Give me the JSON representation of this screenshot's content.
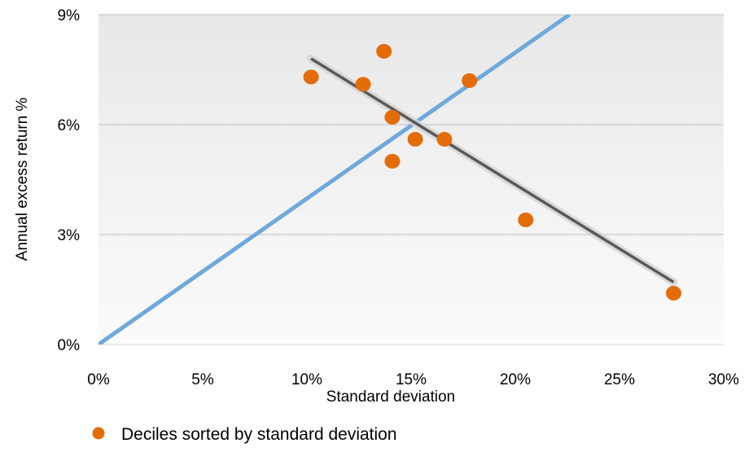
{
  "chart_data": {
    "type": "scatter",
    "xlabel": "Standard deviation",
    "ylabel": "Annual excess return %",
    "xlim": [
      0,
      30
    ],
    "ylim": [
      0,
      9
    ],
    "x_ticks": [
      "0%",
      "5%",
      "10%",
      "15%",
      "20%",
      "25%",
      "30%"
    ],
    "y_ticks": [
      "0%",
      "3%",
      "6%",
      "9%"
    ],
    "grid": "horizontal",
    "legend_position": "bottom",
    "series": [
      {
        "name": "Deciles sorted by standard deviation",
        "color": "#E36C09",
        "points": [
          {
            "x": 10.2,
            "y": 7.3
          },
          {
            "x": 12.7,
            "y": 7.1
          },
          {
            "x": 13.7,
            "y": 8.0
          },
          {
            "x": 14.1,
            "y": 6.2
          },
          {
            "x": 14.1,
            "y": 5.0
          },
          {
            "x": 15.2,
            "y": 5.6
          },
          {
            "x": 16.6,
            "y": 5.6
          },
          {
            "x": 17.8,
            "y": 7.2
          },
          {
            "x": 20.5,
            "y": 3.4
          },
          {
            "x": 27.6,
            "y": 1.4
          }
        ]
      }
    ],
    "lines": [
      {
        "kind": "reference-line",
        "color": "#6FA8DC",
        "from": {
          "x": 0,
          "y": 0
        },
        "to": {
          "x": 22.6,
          "y": 9.0
        }
      },
      {
        "kind": "trendline",
        "color": "#595959",
        "from": {
          "x": 10.2,
          "y": 7.8
        },
        "to": {
          "x": 27.6,
          "y": 1.7
        }
      }
    ]
  }
}
